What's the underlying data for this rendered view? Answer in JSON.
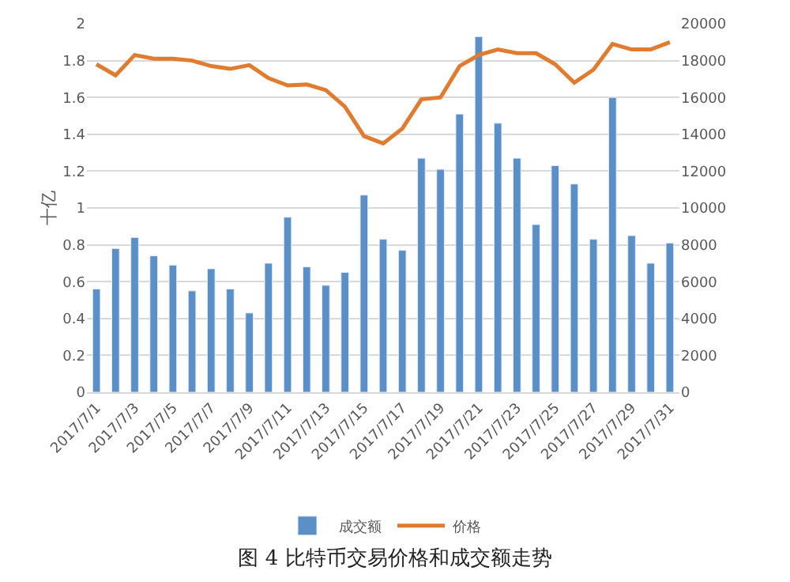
{
  "chart_data": {
    "type": "bar",
    "title": "图 4 比特币交易价格和成交额走势",
    "ylabel": "十亿",
    "categories": [
      "2017/7/1",
      null,
      "2017/7/3",
      null,
      "2017/7/5",
      null,
      "2017/7/7",
      null,
      "2017/7/9",
      null,
      "2017/7/11",
      null,
      "2017/7/13",
      null,
      "2017/7/15",
      null,
      "2017/7/17",
      null,
      "2017/7/19",
      null,
      "2017/7/21",
      null,
      "2017/7/23",
      null,
      "2017/7/25",
      null,
      "2017/7/27",
      null,
      "2017/7/29",
      null,
      "2017/7/31"
    ],
    "series": [
      {
        "name": "成交额",
        "color": "#5b8fc7",
        "values": [
          0.56,
          0.78,
          0.84,
          0.74,
          0.69,
          0.55,
          0.67,
          0.56,
          0.43,
          0.7,
          0.95,
          0.68,
          0.58,
          0.65,
          1.07,
          0.83,
          0.77,
          1.27,
          1.21,
          1.51,
          1.93,
          1.46,
          1.27,
          0.91,
          1.23,
          1.13,
          0.83,
          1.6,
          0.85,
          0.7,
          0.81
        ]
      },
      {
        "name": "价格",
        "type": "line",
        "axis": "y2",
        "color": "#e07b30",
        "values": [
          17800,
          17200,
          18300,
          18100,
          18100,
          18000,
          17700,
          17550,
          17750,
          17050,
          16650,
          16700,
          16400,
          15500,
          13900,
          13500,
          14300,
          15900,
          16000,
          17700,
          18300,
          18600,
          18400,
          18400,
          17800,
          16800,
          17500,
          18900,
          18600,
          18600,
          19000
        ]
      }
    ],
    "ylim": [
      0,
      2
    ],
    "yticks": [
      0,
      0.2,
      0.4,
      0.6,
      0.8,
      1,
      1.2,
      1.4,
      1.6,
      1.8,
      2
    ],
    "y2lim": [
      0,
      20000
    ],
    "y2ticks": [
      0,
      2000,
      4000,
      6000,
      8000,
      10000,
      12000,
      14000,
      16000,
      18000,
      20000
    ],
    "grid": "y",
    "legend": "bottom",
    "marker": "none"
  }
}
